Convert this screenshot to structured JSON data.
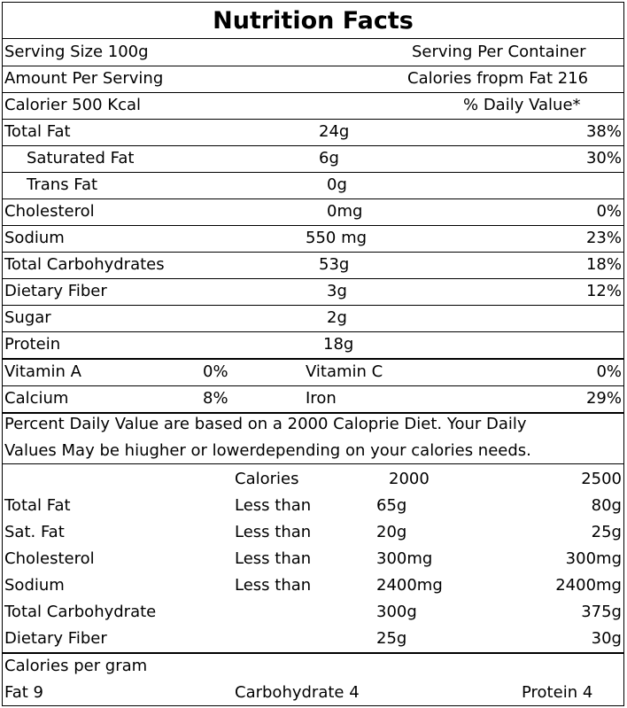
{
  "title": "Nutrition Facts",
  "serving": {
    "size": "Serving Size 100g",
    "per_container": "Serving Per  Container",
    "amount": "Amount Per Serving",
    "cal_from_fat": "Calories fropm Fat 216",
    "calories": "Calorier 500 Kcal",
    "dv_header": "% Daily Value*"
  },
  "nutrients": [
    {
      "name": "Total Fat",
      "amount": "24g",
      "dv": "38%"
    },
    {
      "name": "Saturated Fat",
      "amount": "6g",
      "dv": "30%"
    },
    {
      "name": "Trans Fat",
      "amount": "0g",
      "dv": ""
    },
    {
      "name": "Cholesterol",
      "amount": "0mg",
      "dv": "0%"
    },
    {
      "name": "Sodium",
      "amount": "550 mg",
      "dv": "23%"
    },
    {
      "name": "Total Carbohydrates",
      "amount": "53g",
      "dv": "18%"
    },
    {
      "name": "Dietary Fiber",
      "amount": "3g",
      "dv": "12%"
    },
    {
      "name": "Sugar",
      "amount": "2g",
      "dv": ""
    },
    {
      "name": "Protein",
      "amount": "18g",
      "dv": ""
    }
  ],
  "vitamins": [
    {
      "name1": "Vitamin A",
      "val1": "0%",
      "name2": "Vitamin C",
      "val2": "0%"
    },
    {
      "name1": "Calcium",
      "val1": "8%",
      "name2": "Iron",
      "val2": "29%"
    }
  ],
  "note": [
    "Percent  Daily  Value are based on a  2000 Caloprie Diet. Your Daily",
    "Values May be hiugher or lowerdepending on your calories needs."
  ],
  "dv_table": {
    "header": {
      "calories_label": "Calories",
      "c2000": "2000",
      "c2500": "2500"
    },
    "rows": [
      {
        "name": "Total Fat",
        "limit": "Less than",
        "v2000": "65g",
        "v2500": "80g"
      },
      {
        "name": "Sat. Fat",
        "limit": "Less than",
        "v2000": "20g",
        "v2500": "25g"
      },
      {
        "name": "Cholesterol",
        "limit": "Less than",
        "v2000": "300mg",
        "v2500": "300mg"
      },
      {
        "name": "Sodium",
        "limit": "Less than",
        "v2000": "2400mg",
        "v2500": "2400mg"
      },
      {
        "name": "Total Carbohydrate",
        "limit": "",
        "v2000": "300g",
        "v2500": "375g"
      },
      {
        "name": "Dietary Fiber",
        "limit": "",
        "v2000": "25g",
        "v2500": "30g"
      }
    ]
  },
  "per_gram": {
    "label": "Calories per gram",
    "fat": "Fat 9",
    "carb": "Carbohydrate 4",
    "protein": "Protein 4"
  }
}
